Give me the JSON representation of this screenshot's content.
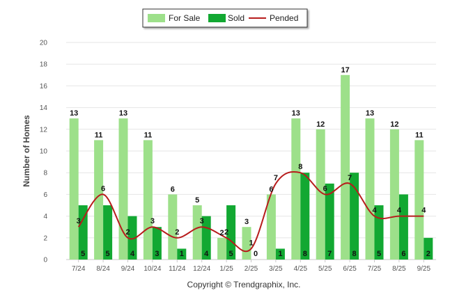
{
  "chart_data": {
    "type": "bar",
    "title": "",
    "xlabel": "",
    "ylabel": "Number of Homes",
    "ylim": [
      0,
      20
    ],
    "yticks": [
      0,
      2,
      4,
      6,
      8,
      10,
      12,
      14,
      16,
      18,
      20
    ],
    "categories": [
      "7/24",
      "8/24",
      "9/24",
      "10/24",
      "11/24",
      "12/24",
      "1/25",
      "2/25",
      "3/25",
      "4/25",
      "5/25",
      "6/25",
      "7/25",
      "8/25",
      "9/25"
    ],
    "series": [
      {
        "name": "For Sale",
        "type": "bar",
        "color": "#9de08a",
        "values": [
          13,
          11,
          13,
          11,
          6,
          5,
          2,
          3,
          6,
          13,
          12,
          17,
          13,
          12,
          11
        ]
      },
      {
        "name": "Sold",
        "type": "bar",
        "color": "#12a832",
        "values": [
          5,
          5,
          4,
          3,
          1,
          4,
          5,
          0,
          1,
          8,
          7,
          8,
          5,
          6,
          2
        ]
      },
      {
        "name": "Pended",
        "type": "line",
        "color": "#b71c1c",
        "values": [
          3,
          6,
          2,
          3,
          2,
          3,
          2,
          1,
          7,
          8,
          6,
          7,
          4,
          4,
          4
        ]
      }
    ],
    "legend_position": "top-center",
    "grid": true
  },
  "footer": {
    "credit": "Copyright © Trendgraphix, Inc."
  }
}
